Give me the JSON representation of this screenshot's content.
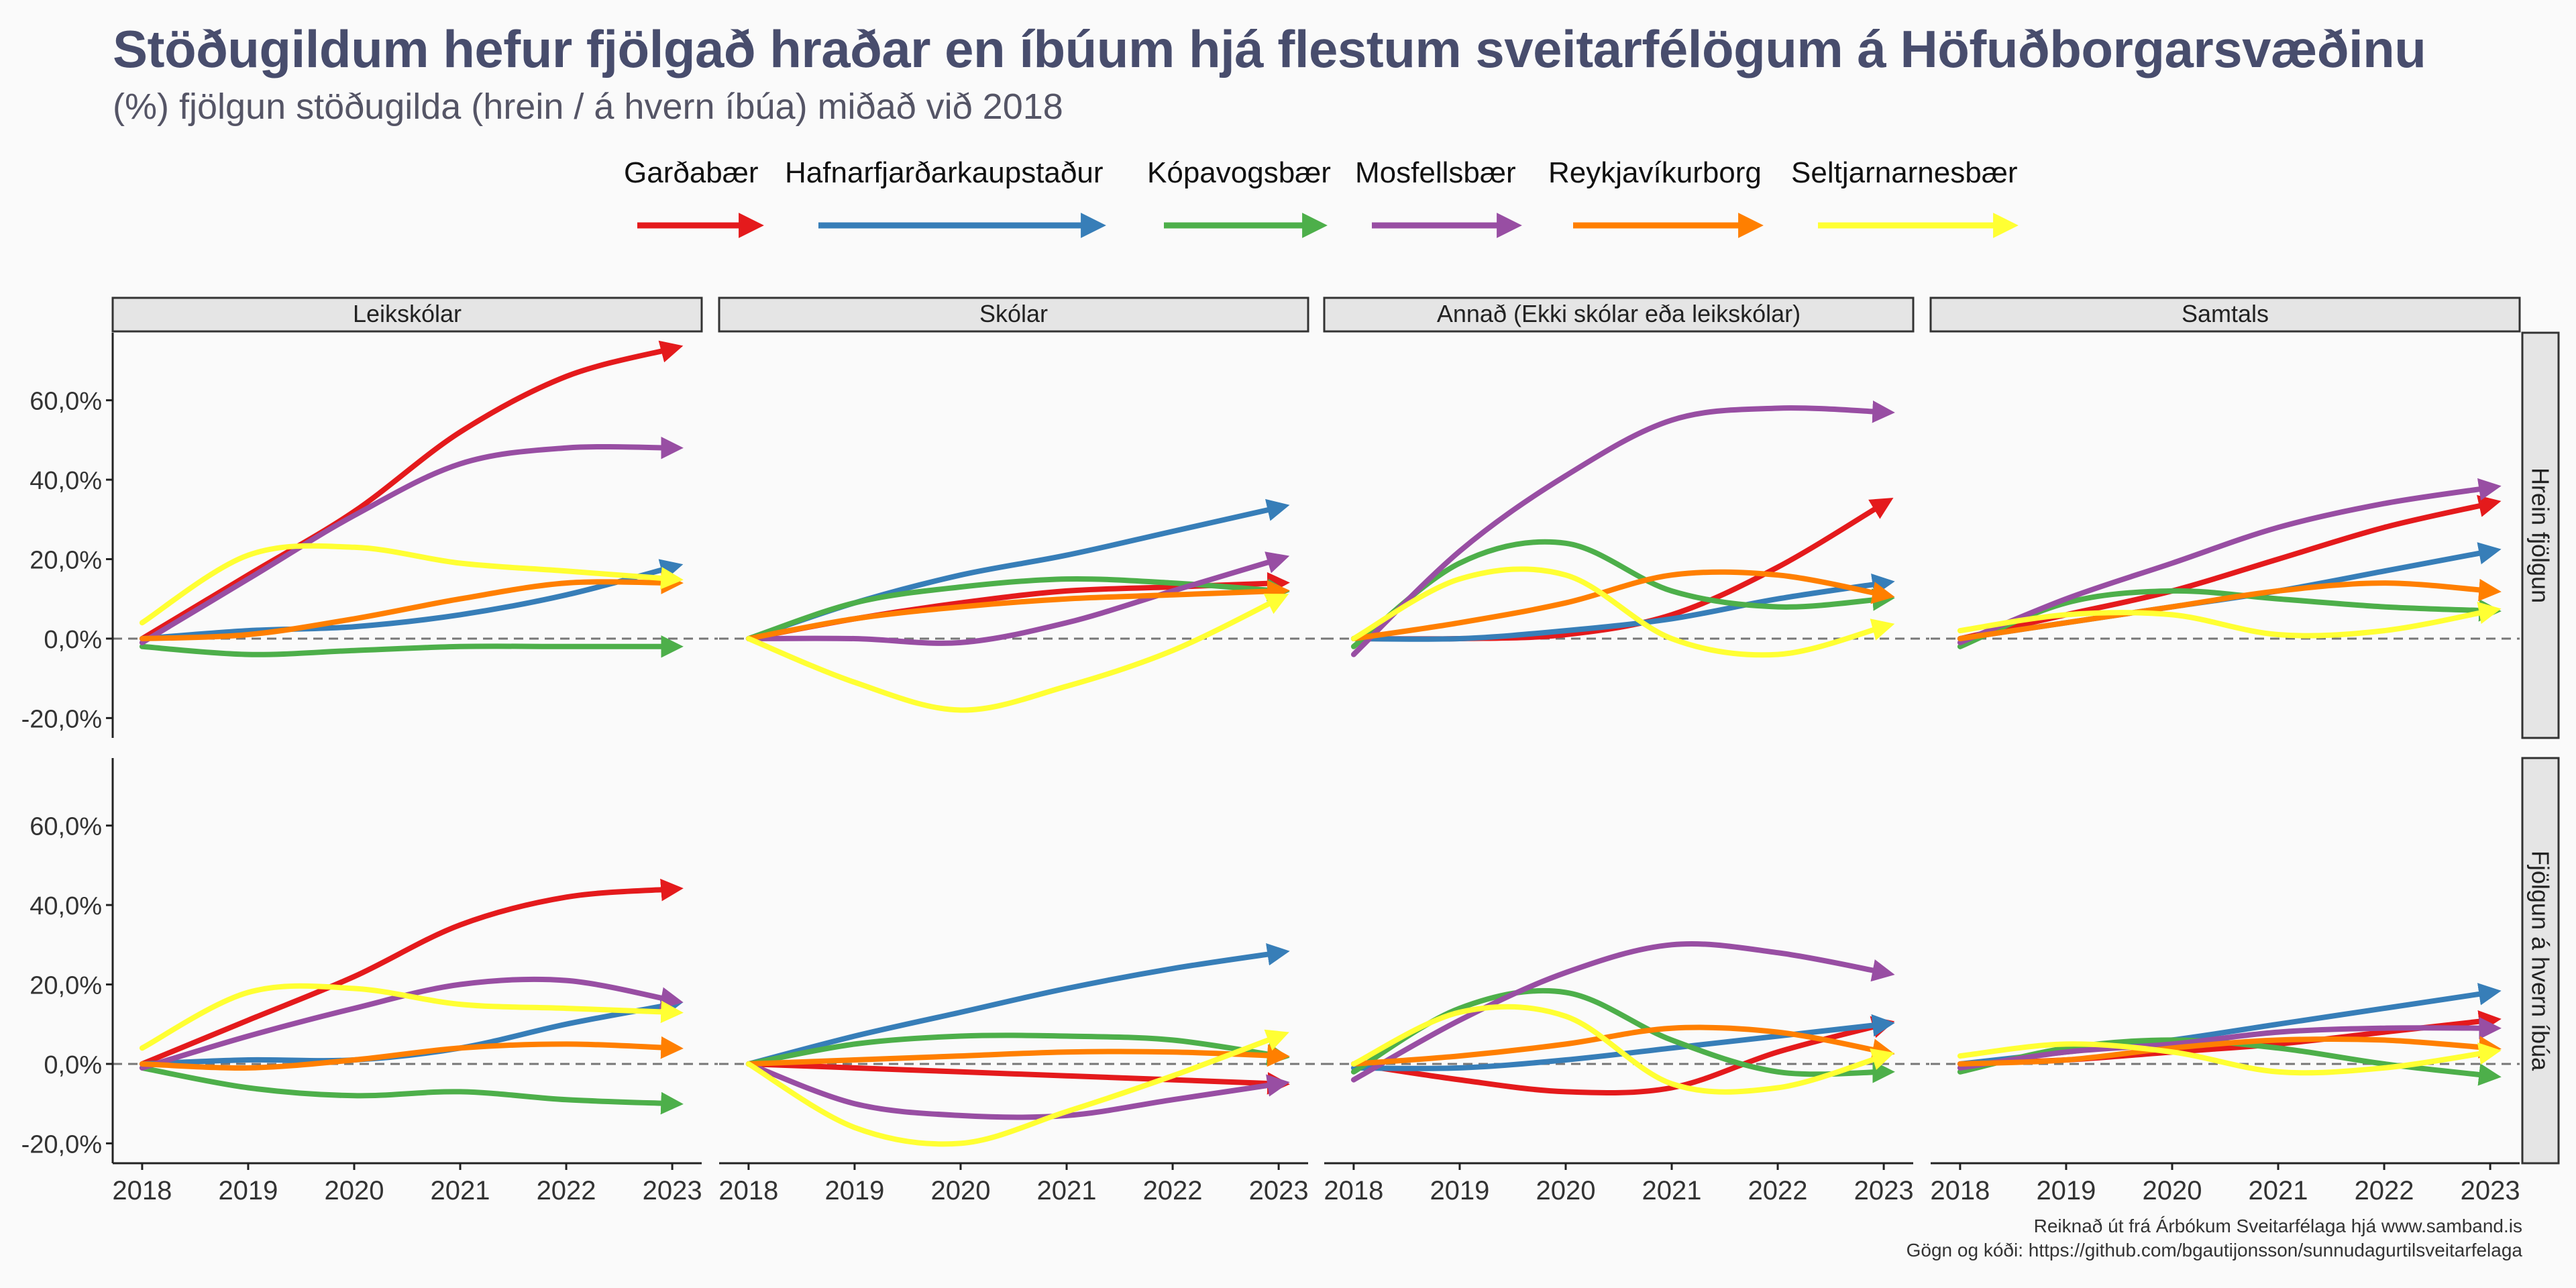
{
  "chart_data": {
    "type": "line",
    "title": "Stöðugildum hefur fjölgað hraðar en íbúum hjá flestum sveitarfélögum á Höfuðborgarsvæðinu",
    "subtitle": "(%) fjölgun stöðugilda (hrein / á hvern íbúa) miðað við 2018",
    "caption": [
      "Reiknað út frá Árbókum Sveitarfélaga hjá www.samband.is",
      "Gögn og kóði: https://github.com/bgautijonsson/sunnudagurtilsveitarfelaga"
    ],
    "columns": [
      "Leikskólar",
      "Skólar",
      "Annað (Ekki skólar eða leikskólar)",
      "Samtals"
    ],
    "rows": [
      "Hrein fjölgun",
      "Fjölgun á hvern íbúa"
    ],
    "x": [
      2018,
      2019,
      2020,
      2021,
      2022,
      2023
    ],
    "x_ticks": [
      "2018",
      "2019",
      "2020",
      "2021",
      "2022",
      "2023"
    ],
    "y_ticks": [
      "-20,0%",
      "0,0%",
      "20,0%",
      "40,0%",
      "60,0%"
    ],
    "ylim": [
      -25,
      77
    ],
    "series": [
      {
        "name": "Garðabær",
        "color": "#e41a1c",
        "values": [
          [
            [
              0,
              16,
              32,
              52,
              66,
              73
            ],
            [
              0,
              5,
              9,
              12,
              13,
              14
            ],
            [
              0,
              0,
              1,
              6,
              18,
              34
            ],
            [
              0,
              6,
              12,
              20,
              28,
              34
            ]
          ],
          [
            [
              0,
              11,
              22,
              35,
              42,
              44
            ],
            [
              0,
              -1,
              -2,
              -3,
              -4,
              -5
            ],
            [
              0,
              -4,
              -7,
              -6,
              3,
              10
            ],
            [
              0,
              1,
              3,
              5,
              8,
              11
            ]
          ]
        ]
      },
      {
        "name": "Hafnarfjarðarkaupstaður",
        "color": "#377eb8",
        "values": [
          [
            [
              0,
              2,
              3,
              6,
              11,
              18
            ],
            [
              0,
              9,
              16,
              21,
              27,
              33
            ],
            [
              0,
              0,
              2,
              5,
              10,
              14
            ],
            [
              0,
              4,
              8,
              12,
              17,
              22
            ]
          ],
          [
            [
              0,
              1,
              1,
              4,
              10,
              15
            ],
            [
              0,
              7,
              13,
              19,
              24,
              28
            ],
            [
              -1,
              -1,
              1,
              4,
              7,
              10
            ],
            [
              0,
              3,
              6,
              10,
              14,
              18
            ]
          ]
        ]
      },
      {
        "name": "Kópavogsbær",
        "color": "#4daf4a",
        "values": [
          [
            [
              -2,
              -4,
              -3,
              -2,
              -2,
              -2
            ],
            [
              0,
              9,
              13,
              15,
              14,
              12
            ],
            [
              -2,
              19,
              24,
              12,
              8,
              10
            ],
            [
              -2,
              9,
              12,
              10,
              8,
              7
            ]
          ],
          [
            [
              -1,
              -6,
              -8,
              -7,
              -9,
              -10
            ],
            [
              0,
              5,
              7,
              7,
              6,
              2
            ],
            [
              -2,
              14,
              18,
              6,
              -2,
              -2
            ],
            [
              -2,
              4,
              6,
              4,
              0,
              -3
            ]
          ]
        ]
      },
      {
        "name": "Mosfellsbær",
        "color": "#984ea3",
        "values": [
          [
            [
              -1,
              15,
              31,
              44,
              48,
              48
            ],
            [
              0,
              0,
              -1,
              4,
              12,
              20
            ],
            [
              -4,
              22,
              41,
              55,
              58,
              57
            ],
            [
              -1,
              10,
              19,
              28,
              34,
              38
            ]
          ],
          [
            [
              -1,
              7,
              14,
              20,
              21,
              16
            ],
            [
              0,
              -10,
              -13,
              -13,
              -9,
              -5
            ],
            [
              -4,
              11,
              23,
              30,
              28,
              23
            ],
            [
              -1,
              3,
              5,
              8,
              9,
              9
            ]
          ]
        ]
      },
      {
        "name": "Reykjavíkurborg",
        "color": "#ff7f00",
        "values": [
          [
            [
              0,
              1,
              5,
              10,
              14,
              14
            ],
            [
              0,
              5,
              8,
              10,
              11,
              12
            ],
            [
              0,
              4,
              9,
              16,
              16,
              11
            ],
            [
              0,
              4,
              8,
              12,
              14,
              12
            ]
          ],
          [
            [
              0,
              -1,
              1,
              4,
              5,
              4
            ],
            [
              0,
              1,
              2,
              3,
              3,
              2
            ],
            [
              0,
              2,
              5,
              9,
              8,
              3
            ],
            [
              0,
              1,
              4,
              6,
              6,
              4
            ]
          ]
        ]
      },
      {
        "name": "Seltjarnarnesbær",
        "color": "#ffff33",
        "values": [
          [
            [
              4,
              21,
              23,
              19,
              17,
              15
            ],
            [
              0,
              -11,
              -18,
              -12,
              -3,
              10
            ],
            [
              0,
              15,
              16,
              0,
              -4,
              3
            ],
            [
              2,
              6,
              6,
              1,
              2,
              7
            ]
          ],
          [
            [
              4,
              18,
              19,
              15,
              14,
              13
            ],
            [
              0,
              -16,
              -20,
              -12,
              -3,
              7
            ],
            [
              0,
              13,
              12,
              -5,
              -6,
              2
            ],
            [
              2,
              5,
              3,
              -2,
              -1,
              3
            ]
          ]
        ]
      }
    ]
  }
}
